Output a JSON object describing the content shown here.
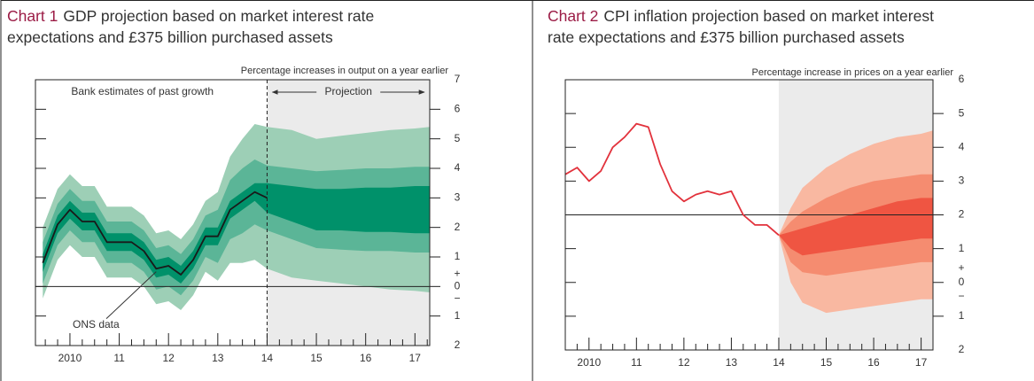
{
  "chart_data": [
    {
      "type": "fan",
      "title_prefix": "Chart 1",
      "title": [
        "GDP projection based on market interest rate",
        "expectations and £375 billion purchased assets"
      ],
      "y_label": "Percentage increases in output on a year earlier",
      "annotations": [
        "Bank estimates of past growth",
        "Projection",
        "ONS data"
      ],
      "signs": [
        "+",
        "−"
      ],
      "band_x": [
        2009.45,
        2009.75,
        2010.0,
        2010.25,
        2010.5,
        2010.75,
        2011.0,
        2011.25,
        2011.5,
        2011.75,
        2012.0,
        2012.25,
        2012.5,
        2012.75,
        2013.0,
        2013.25,
        2013.5,
        2013.75,
        2014.0,
        2014.5,
        2015.0,
        2015.5,
        2016.0,
        2016.5,
        2017.0,
        2017.3
      ],
      "bands": [
        {
          "color": "#9dcfb6",
          "lower": [
            -0.4,
            0.9,
            1.4,
            1.0,
            1.0,
            0.3,
            0.3,
            0.3,
            0.0,
            -0.6,
            -0.5,
            -0.8,
            -0.3,
            0.5,
            0.2,
            0.8,
            0.8,
            0.9,
            0.6,
            0.3,
            0.2,
            0.1,
            0.0,
            -0.1,
            -0.15,
            -0.2
          ],
          "upper": [
            2.0,
            3.3,
            3.8,
            3.4,
            3.4,
            2.7,
            2.7,
            2.7,
            2.4,
            1.8,
            1.9,
            1.6,
            2.1,
            2.9,
            3.2,
            4.4,
            5.0,
            5.5,
            5.4,
            5.3,
            5.0,
            5.1,
            5.2,
            5.3,
            5.35,
            5.4
          ]
        },
        {
          "color": "#5bb597",
          "lower": [
            0.1,
            1.4,
            1.9,
            1.5,
            1.5,
            0.8,
            0.8,
            0.8,
            0.5,
            -0.1,
            0.0,
            -0.3,
            0.2,
            1.0,
            0.8,
            1.6,
            1.8,
            2.1,
            1.9,
            1.6,
            1.3,
            1.25,
            1.2,
            1.2,
            1.15,
            1.15
          ],
          "upper": [
            1.5,
            2.8,
            3.3,
            2.9,
            2.9,
            2.2,
            2.2,
            2.2,
            1.9,
            1.3,
            1.4,
            1.1,
            1.6,
            2.4,
            2.6,
            3.6,
            4.0,
            4.3,
            4.1,
            4.0,
            3.9,
            3.95,
            4.0,
            4.0,
            4.05,
            4.05
          ]
        },
        {
          "color": "#00916a",
          "lower": [
            0.5,
            1.8,
            2.3,
            1.9,
            1.9,
            1.2,
            1.2,
            1.2,
            0.9,
            0.3,
            0.4,
            0.1,
            0.6,
            1.4,
            1.4,
            2.3,
            2.6,
            2.9,
            2.5,
            2.2,
            1.9,
            1.9,
            1.85,
            1.85,
            1.8,
            1.8
          ],
          "upper": [
            1.1,
            2.4,
            2.9,
            2.5,
            2.5,
            1.8,
            1.8,
            1.8,
            1.5,
            0.9,
            1.0,
            0.7,
            1.2,
            2.0,
            2.0,
            2.9,
            3.2,
            3.5,
            3.5,
            3.4,
            3.3,
            3.3,
            3.35,
            3.35,
            3.4,
            3.4
          ]
        }
      ],
      "line": {
        "color": "#1a1a1a",
        "x": [
          2009.45,
          2009.75,
          2010.0,
          2010.25,
          2010.5,
          2010.75,
          2011.0,
          2011.25,
          2011.5,
          2011.75,
          2012.0,
          2012.25,
          2012.5,
          2012.75,
          2013.0,
          2013.25,
          2013.5,
          2013.75,
          2014.0
        ],
        "values": [
          0.8,
          2.1,
          2.6,
          2.2,
          2.2,
          1.5,
          1.5,
          1.5,
          1.2,
          0.6,
          0.7,
          0.4,
          0.9,
          1.7,
          1.7,
          2.6,
          2.9,
          3.2,
          3.0
        ]
      },
      "xlim": [
        2009.3,
        2017.3
      ],
      "xticks": [
        2010,
        {
          "value": 2011,
          "label": "11"
        },
        {
          "value": 2012,
          "label": "12"
        },
        {
          "value": 2013,
          "label": "13"
        },
        {
          "value": 2014,
          "label": "14"
        },
        {
          "value": 2015,
          "label": "15"
        },
        {
          "value": 2016,
          "label": "16"
        },
        {
          "value": 2017,
          "label": "17"
        }
      ],
      "ylim": [
        -2,
        7
      ],
      "yticks": [
        {
          "value": -2,
          "label": "2"
        },
        {
          "value": -1,
          "label": "1"
        },
        0,
        1,
        2,
        3,
        4,
        5,
        6,
        7
      ],
      "hline": 0,
      "projection_start": 2014,
      "dashed_divider": true,
      "shade_color": "#ebebeb"
    },
    {
      "type": "fan",
      "title_prefix": "Chart 2",
      "title": [
        "CPI inflation projection based on market interest",
        "rate expectations and £375 billion purchased assets"
      ],
      "y_label": "Percentage increase in prices on a year earlier",
      "signs": [
        "+",
        "−"
      ],
      "band_x": [
        2014.0,
        2014.25,
        2014.5,
        2015.0,
        2015.5,
        2016.0,
        2016.5,
        2017.0,
        2017.25
      ],
      "bands": [
        {
          "color": "#f9b8a1",
          "lower": [
            1.4,
            0.0,
            -0.6,
            -0.9,
            -0.8,
            -0.7,
            -0.6,
            -0.5,
            -0.5
          ],
          "upper": [
            1.4,
            2.2,
            2.8,
            3.4,
            3.8,
            4.1,
            4.3,
            4.4,
            4.5
          ]
        },
        {
          "color": "#f58c70",
          "lower": [
            1.4,
            0.6,
            0.3,
            0.2,
            0.3,
            0.4,
            0.5,
            0.6,
            0.6
          ],
          "upper": [
            1.4,
            1.8,
            2.1,
            2.5,
            2.8,
            3.0,
            3.1,
            3.2,
            3.2
          ]
        },
        {
          "color": "#ef5542",
          "lower": [
            1.4,
            1.0,
            0.8,
            0.9,
            1.0,
            1.1,
            1.2,
            1.3,
            1.3
          ],
          "upper": [
            1.4,
            1.5,
            1.6,
            1.8,
            2.0,
            2.2,
            2.4,
            2.5,
            2.5
          ]
        }
      ],
      "line": {
        "color": "#e2323c",
        "x": [
          2009.5,
          2009.75,
          2010.0,
          2010.25,
          2010.5,
          2010.75,
          2011.0,
          2011.25,
          2011.5,
          2011.75,
          2012.0,
          2012.25,
          2012.5,
          2012.75,
          2013.0,
          2013.25,
          2013.5,
          2013.75,
          2014.0
        ],
        "values": [
          3.2,
          3.4,
          3.0,
          3.3,
          4.0,
          4.3,
          4.7,
          4.6,
          3.5,
          2.7,
          2.4,
          2.6,
          2.7,
          2.6,
          2.7,
          2.0,
          1.7,
          1.7,
          1.4
        ]
      },
      "xlim": [
        2009.5,
        2017.25
      ],
      "xticks": [
        2010,
        {
          "value": 2011,
          "label": "11"
        },
        {
          "value": 2012,
          "label": "12"
        },
        {
          "value": 2013,
          "label": "13"
        },
        {
          "value": 2014,
          "label": "14"
        },
        {
          "value": 2015,
          "label": "15"
        },
        {
          "value": 2016,
          "label": "16"
        },
        {
          "value": 2017,
          "label": "17"
        }
      ],
      "ylim": [
        -2,
        6
      ],
      "yticks": [
        {
          "value": -2,
          "label": "2"
        },
        {
          "value": -1,
          "label": "1"
        },
        0,
        1,
        2,
        3,
        4,
        5,
        6
      ],
      "hline": 2,
      "projection_start": 2014,
      "dashed_divider": false,
      "shade_color": "#ebebeb"
    }
  ]
}
